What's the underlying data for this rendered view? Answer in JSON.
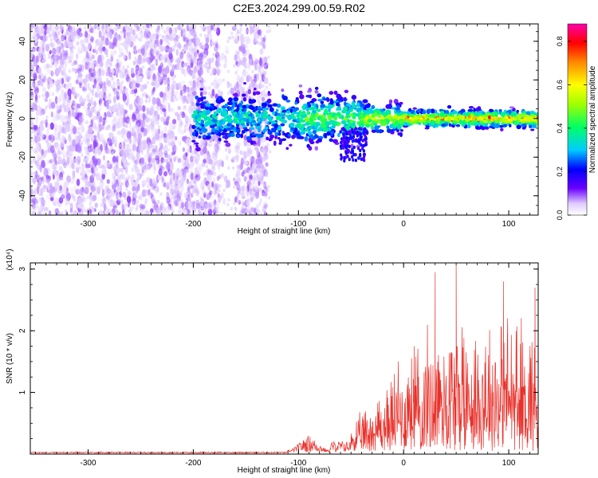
{
  "title": "C2E3.2024.299.00.59.R02",
  "colors": {
    "signal_line": "#e8312b",
    "axis": "#000000",
    "background": "#ffffff"
  },
  "chart_data": [
    {
      "type": "heatmap",
      "xlabel": "Height of straight line (km)",
      "ylabel": "Frequency (Hz)",
      "xlim": [
        -355,
        128
      ],
      "ylim": [
        -50,
        49
      ],
      "xticks": [
        -300,
        -200,
        -100,
        0,
        100
      ],
      "yticks": [
        -40,
        -20,
        0,
        20,
        40
      ],
      "colorbar": {
        "label": "Normalized spectral amplitude",
        "range": [
          0,
          0.88
        ],
        "ticks": [
          "0.0",
          "0.2",
          "0.4",
          "0.6",
          "0.8"
        ],
        "colormap": [
          "#ffffff",
          "#e0ccff",
          "#6a00ff",
          "#0000ff",
          "#00ccff",
          "#00ff66",
          "#a0ff00",
          "#ffff00",
          "#ff8800",
          "#ff0000",
          "#ff00aa"
        ]
      },
      "description_regions": {
        "noise_floor_band_x": [
          -355,
          -130
        ],
        "ridge_start_x": -180,
        "ridge_center_freq": 0
      }
    },
    {
      "type": "line",
      "xlabel": "Height of straight line (km)",
      "ylabel": "SNR (10 * v/v)",
      "y_multiplier": "(x10⁴)",
      "xlim": [
        -355,
        128
      ],
      "ylim": [
        0,
        3.1
      ],
      "xticks": [
        -300,
        -200,
        -100,
        0,
        100
      ],
      "yticks": [
        1,
        2,
        3
      ],
      "series_profile": {
        "flat_until_x": -110,
        "low_bump_x": [
          -110,
          -70
        ],
        "low_bump_peak": 0.28,
        "rise_start_x": -50,
        "peak_x": 50,
        "peak_value": 3.1,
        "spike_values": [
          [
            30,
            2.95
          ],
          [
            50,
            3.1
          ],
          [
            95,
            2.8
          ],
          [
            125,
            2.7
          ],
          [
            -5,
            1.5
          ],
          [
            10,
            1.75
          ]
        ]
      }
    }
  ]
}
